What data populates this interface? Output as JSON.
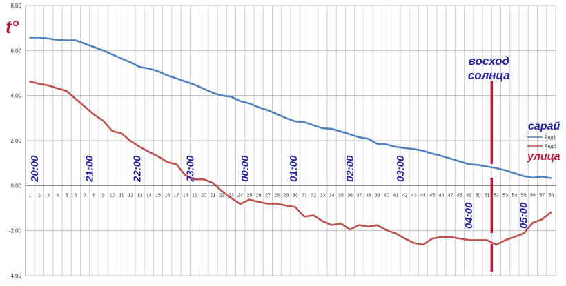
{
  "chart_data": {
    "type": "line",
    "ylabel": "t°",
    "ylim": [
      -4,
      8
    ],
    "yticks": [
      "-4,00",
      "-2,00",
      "0,00",
      "2,00",
      "4,00",
      "6,00",
      "8,00"
    ],
    "x": [
      1,
      2,
      3,
      4,
      5,
      6,
      7,
      8,
      9,
      10,
      11,
      12,
      13,
      14,
      15,
      16,
      17,
      18,
      19,
      20,
      21,
      22,
      23,
      24,
      25,
      26,
      27,
      28,
      29,
      30,
      31,
      32,
      33,
      34,
      35,
      36,
      37,
      38,
      39,
      40,
      41,
      42,
      43,
      44,
      45,
      46,
      47,
      48,
      49,
      50,
      51,
      52,
      53,
      54,
      55,
      56,
      57,
      58
    ],
    "series": [
      {
        "name": "Ряд1",
        "color": "#4f81bd",
        "values": [
          6.58,
          6.58,
          6.53,
          6.47,
          6.45,
          6.45,
          6.3,
          6.15,
          6.0,
          5.82,
          5.65,
          5.47,
          5.27,
          5.2,
          5.08,
          4.9,
          4.76,
          4.62,
          4.48,
          4.3,
          4.12,
          4.0,
          3.95,
          3.75,
          3.65,
          3.48,
          3.35,
          3.18,
          3.0,
          2.85,
          2.82,
          2.68,
          2.55,
          2.52,
          2.4,
          2.28,
          2.15,
          2.08,
          1.85,
          1.83,
          1.72,
          1.67,
          1.62,
          1.55,
          1.42,
          1.32,
          1.2,
          1.08,
          0.95,
          0.92,
          0.85,
          0.78,
          0.68,
          0.55,
          0.42,
          0.35,
          0.4,
          0.33
        ]
      },
      {
        "name": "Ряд2",
        "color": "#c0504d",
        "values": [
          4.62,
          4.52,
          4.45,
          4.32,
          4.2,
          3.85,
          3.5,
          3.15,
          2.88,
          2.42,
          2.32,
          1.98,
          1.72,
          1.5,
          1.3,
          1.05,
          0.95,
          0.45,
          0.28,
          0.28,
          0.12,
          -0.25,
          -0.55,
          -0.82,
          -0.62,
          -0.72,
          -0.8,
          -0.8,
          -0.88,
          -0.95,
          -1.38,
          -1.32,
          -1.58,
          -1.75,
          -1.68,
          -1.95,
          -1.75,
          -1.82,
          -1.76,
          -1.98,
          -2.12,
          -2.35,
          -2.55,
          -2.62,
          -2.35,
          -2.28,
          -2.28,
          -2.35,
          -2.42,
          -2.42,
          -2.42,
          -2.62,
          -2.42,
          -2.28,
          -2.12,
          -1.65,
          -1.5,
          -1.18
        ]
      }
    ],
    "legend": {
      "placement": "right",
      "entries": [
        "Ряд1",
        "Ряд2"
      ]
    },
    "time_labels": [
      {
        "text": "20:00",
        "at": 1.5
      },
      {
        "text": "21:00",
        "at": 7.5
      },
      {
        "text": "22:00",
        "at": 12.7
      },
      {
        "text": "23:00",
        "at": 18.5
      },
      {
        "text": "00:00",
        "at": 24.5
      },
      {
        "text": "01:00",
        "at": 29.8
      },
      {
        "text": "02:00",
        "at": 36
      },
      {
        "text": "03:00",
        "at": 41.5
      },
      {
        "text": "04:00",
        "at": 49
      },
      {
        "text": "05:00",
        "at": 55
      }
    ],
    "sunrise": {
      "at": 51.5,
      "lines": [
        "восход",
        "солнца"
      ],
      "color": "#c0143c"
    },
    "series_labels": {
      "barn": "сарай",
      "barn_color": "#1f1fb0",
      "street": "улица",
      "street_color": "#c0143c"
    }
  }
}
